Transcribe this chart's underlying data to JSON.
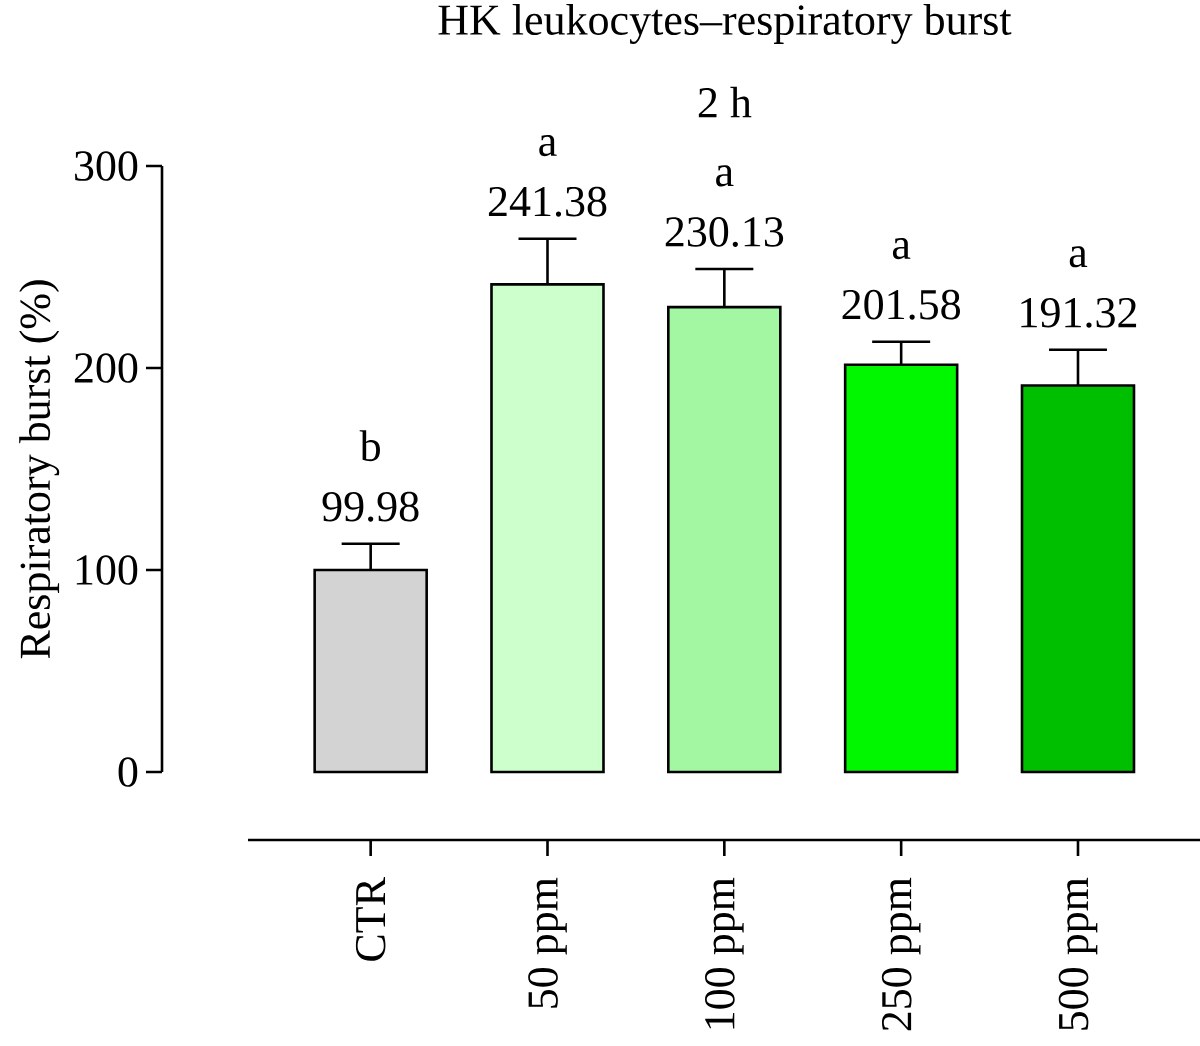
{
  "chart_data": {
    "type": "bar",
    "title": "HK leukocytes–respiratory burst",
    "subtitle": "2 h",
    "ylabel": "Respiratory burst (%)",
    "categories": [
      "CTR",
      "50 ppm",
      "100 ppm",
      "250 ppm",
      "500 ppm"
    ],
    "values": [
      99.98,
      241.38,
      230.13,
      201.58,
      191.32
    ],
    "colors": [
      "#d3d3d3",
      "#ccffcc",
      "#a3f7a3",
      "#00f700",
      "#00be00"
    ],
    "errors": [
      [
        99.98,
        113
      ],
      [
        241.38,
        264
      ],
      [
        230.13,
        249
      ],
      [
        201.58,
        213
      ],
      [
        191.32,
        209
      ]
    ],
    "data_labels": true,
    "ylim": [
      0,
      300
    ],
    "yticks": [
      0,
      100,
      200,
      300
    ],
    "annotations": [
      "b",
      "a",
      "a",
      "a",
      "a"
    ]
  }
}
